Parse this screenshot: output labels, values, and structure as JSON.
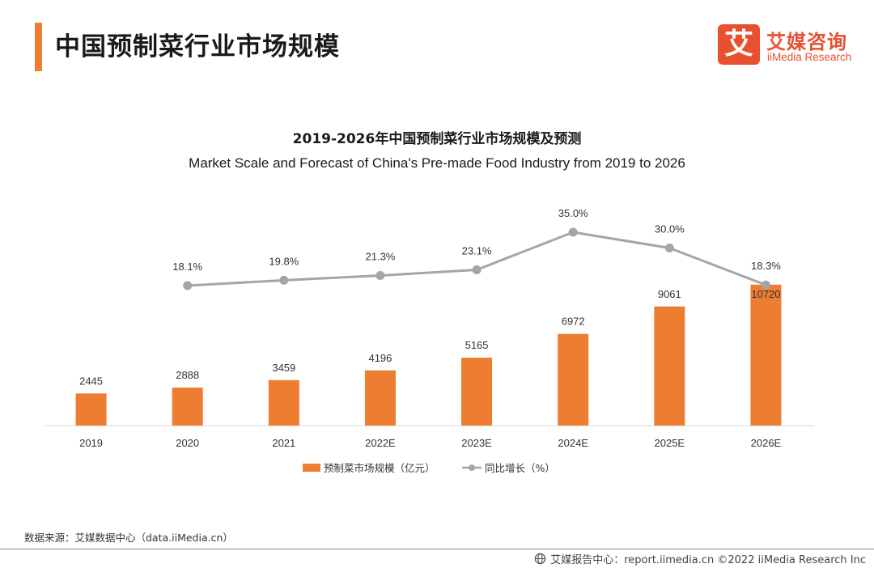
{
  "header": {
    "title": "中国预制菜行业市场规模",
    "logo_cn": "艾媒咨询",
    "logo_en": "iiMedia Research",
    "logo_mark": "艾"
  },
  "colors": {
    "accent": "#ED7D31",
    "bar": "#ED7D31",
    "line": "#A5A5A5",
    "brand": "#E8502F"
  },
  "chart_data": {
    "type": "bar",
    "title": "2019-2026年中国预制菜行业市场规模及预测",
    "subtitle": "Market Scale and Forecast of China's Pre-made Food Industry from 2019 to 2026",
    "categories": [
      "2019",
      "2020",
      "2021",
      "2022E",
      "2023E",
      "2024E",
      "2025E",
      "2026E"
    ],
    "series": [
      {
        "name": "预制菜市场规模（亿元）",
        "type": "bar",
        "values": [
          2445,
          2888,
          3459,
          4196,
          5165,
          6972,
          9061,
          10720
        ]
      },
      {
        "name": "同比增长（%）",
        "type": "line",
        "values": [
          null,
          18.1,
          19.8,
          21.3,
          23.1,
          35.0,
          30.0,
          18.3
        ],
        "labels": [
          "",
          "18.1%",
          "19.8%",
          "21.3%",
          "23.1%",
          "35.0%",
          "30.0%",
          "18.3%"
        ]
      }
    ],
    "legend_position": "bottom",
    "grid": false
  },
  "footer": {
    "source": "数据来源：艾媒数据中心（data.iiMedia.cn）",
    "right_text": "艾媒报告中心：report.iimedia.cn  ©2022  iiMedia Research  Inc",
    "globe_icon": "globe-icon"
  }
}
